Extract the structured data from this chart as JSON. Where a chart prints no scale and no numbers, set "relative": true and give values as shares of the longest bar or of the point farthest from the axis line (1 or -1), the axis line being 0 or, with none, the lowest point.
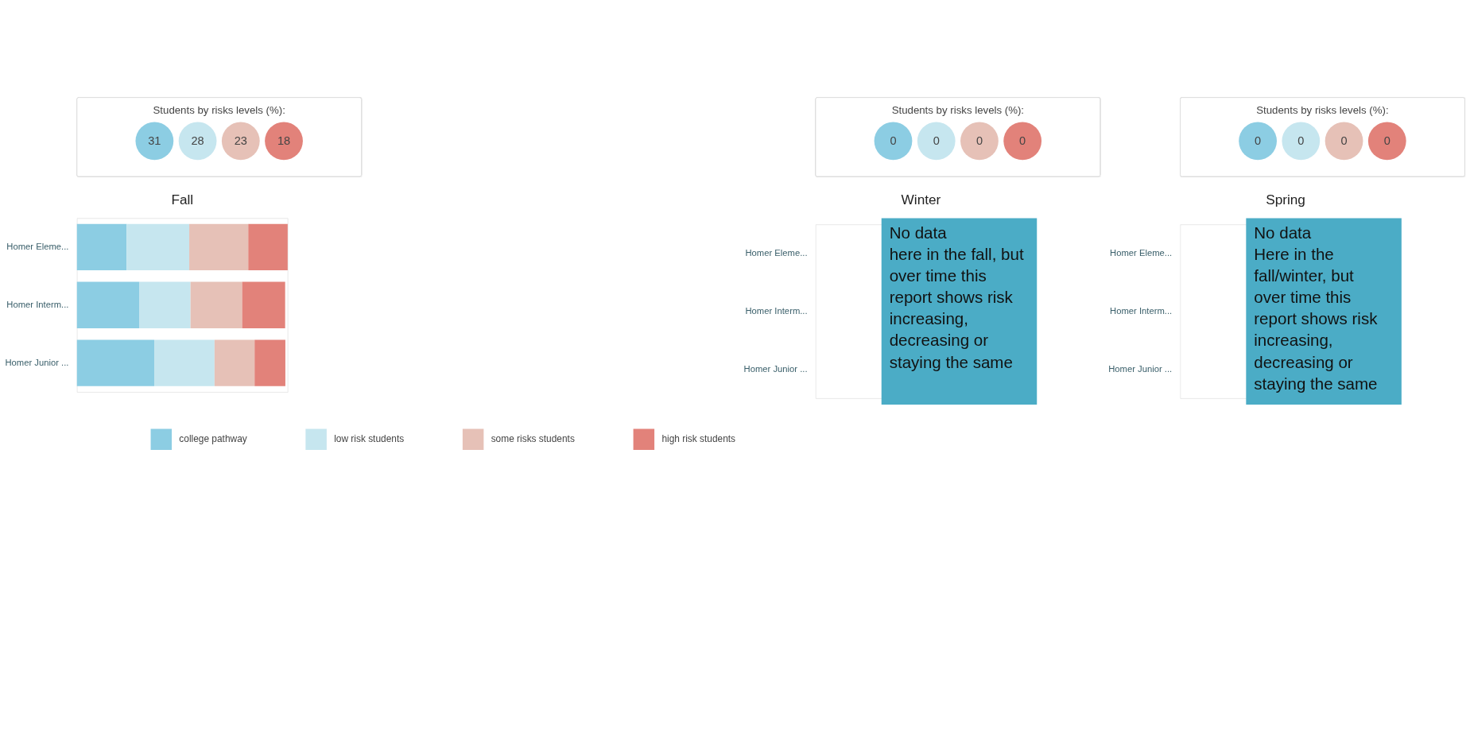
{
  "chart_data": [
    {
      "type": "other",
      "title": "Students by risks levels (%):",
      "categories": [
        null,
        null,
        null,
        null
      ],
      "values": [
        31,
        28,
        23,
        18
      ],
      "data_labels": true,
      "colors": [
        "#8ccde3",
        "#c6e6ef",
        "#e6c1b7",
        "#e2827a"
      ]
    },
    {
      "type": "bar",
      "title": "Fall",
      "orientation": "horizontal",
      "stacked": true,
      "relative": true,
      "legend": "bottom",
      "categories": [
        "Homer Eleme...",
        "Homer Interm...",
        "Homer Junior ..."
      ],
      "series": [
        {
          "name": "college pathway",
          "color": "#8ccde3",
          "values": [
            0.236,
            0.297,
            0.367
          ]
        },
        {
          "name": "low risk students",
          "color": "#c6e6ef",
          "values": [
            0.297,
            0.242,
            0.286
          ]
        },
        {
          "name": "some risks students",
          "color": "#e6c1b7",
          "values": [
            0.28,
            0.245,
            0.19
          ]
        },
        {
          "name": "high risk students",
          "color": "#e2827a",
          "values": [
            0.187,
            0.204,
            0.146
          ]
        }
      ]
    },
    {
      "type": "other",
      "title": "Students by risks levels (%):",
      "categories": [
        null,
        null,
        null,
        null
      ],
      "values": [
        0,
        0,
        0,
        0
      ],
      "data_labels": true,
      "colors": [
        "#8ccde3",
        "#c6e6ef",
        "#e6c1b7",
        "#e2827a"
      ]
    },
    {
      "type": "other",
      "title": "Winter",
      "categories": [
        "Homer Eleme...",
        "Homer Interm...",
        "Homer Junior ..."
      ],
      "annotations": [
        "No data\nhere in the fall, but\nover time this\nreport shows risk\nincreasing,\ndecreasing or\nstaying the same"
      ]
    },
    {
      "type": "other",
      "title": "Students by risks levels (%):",
      "categories": [
        null,
        null,
        null,
        null
      ],
      "values": [
        0,
        0,
        0,
        0
      ],
      "data_labels": true,
      "colors": [
        "#8ccde3",
        "#c6e6ef",
        "#e6c1b7",
        "#e2827a"
      ]
    },
    {
      "type": "other",
      "title": "Spring",
      "categories": [
        "Homer Eleme...",
        "Homer Interm...",
        "Homer Junior ..."
      ],
      "annotations": [
        "No data\nHere in the\nfall/winter, but\nover time this\nreport shows risk\nincreasing,\ndecreasing or\nstaying the same"
      ]
    }
  ]
}
